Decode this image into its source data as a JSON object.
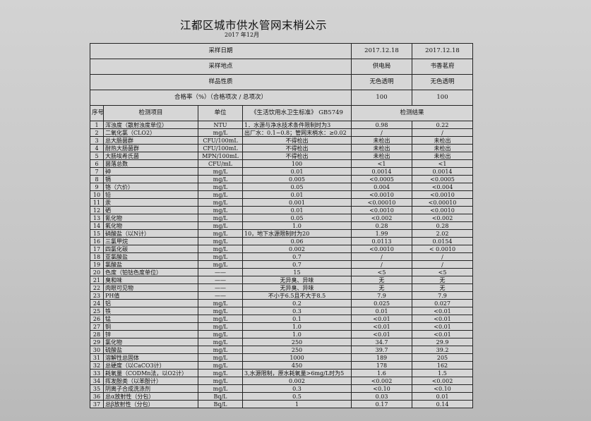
{
  "title": "江都区城市供水管网末梢公示",
  "subtitle": "2017 年12月",
  "header_rows": [
    {
      "label": "采样日期",
      "v1": "2017.12.18",
      "v2": "2017.12.18"
    },
    {
      "label": "采样地点",
      "v1": "供电局",
      "v2": "书香茗府"
    },
    {
      "label": "样品性质",
      "v1": "无色透明",
      "v2": "无色透明"
    },
    {
      "label": "合格率（%）（合格项次 / 总项次）",
      "v1": "100",
      "v2": "100"
    }
  ],
  "columns": {
    "no": "序号",
    "item": "检测项目",
    "unit": "单位",
    "standard": "《生活饮用水卫生标准》 GB5749",
    "result": "检测结果"
  },
  "rows": [
    [
      "1",
      "浑浊度（散射浊度单位）",
      "NTU",
      "1．水源与净水技术条件限制时为3",
      "0.98",
      "0.22"
    ],
    [
      "2",
      "二氧化氯（CLO2）",
      "mg/L",
      "出厂水：0.1~0.8；管网末梢水：≥0.02",
      "/",
      "/"
    ],
    [
      "3",
      "总大肠菌群",
      "CFU/100mL",
      "不得检出",
      "未检出",
      "未检出"
    ],
    [
      "4",
      "耐热大肠菌群",
      "CFU/100mL",
      "不得检出",
      "未检出",
      "未检出"
    ],
    [
      "5",
      "大肠埃希氏菌",
      "MPN/100mL",
      "不得检出",
      "未检出",
      "未检出"
    ],
    [
      "6",
      "菌落总数",
      "CFU/mL",
      "100",
      "<1",
      "<1"
    ],
    [
      "7",
      "砷",
      "mg/L",
      "0.01",
      "0.0014",
      "0.0014"
    ],
    [
      "8",
      "镉",
      "mg/L",
      "0.005",
      "<0.0005",
      "<0.0005"
    ],
    [
      "9",
      "铬（六价）",
      "mg/L",
      "0.05",
      "0.004",
      "<0.004"
    ],
    [
      "10",
      "铅",
      "mg/L",
      "0.01",
      "<0.0010",
      "<0.0010"
    ],
    [
      "11",
      "汞",
      "mg/L",
      "0.001",
      "<0.00010",
      "<0.00010"
    ],
    [
      "12",
      "硒",
      "mg/L",
      "0.01",
      "<0.0010",
      "<0.0010"
    ],
    [
      "13",
      "氰化物",
      "mg/L",
      "0.05",
      "<0.002",
      "<0.002"
    ],
    [
      "14",
      "氟化物",
      "mg/L",
      "1.0",
      "0.28",
      "0.28"
    ],
    [
      "15",
      "硝酸盐（以N计）",
      "mg/L",
      "10，地下水源限制时为20",
      "1.99",
      "2.02"
    ],
    [
      "16",
      "三氯甲烷",
      "mg/L",
      "0.06",
      "0.0113",
      "0.0154"
    ],
    [
      "17",
      "四氯化碳",
      "mg/L",
      "0.002",
      "<0.0010",
      "< 0.0010"
    ],
    [
      "18",
      "亚氯酸盐",
      "mg/L",
      "0.7",
      "/",
      "/"
    ],
    [
      "19",
      "氯酸盐",
      "mg/L",
      "0.7",
      "/",
      "/"
    ],
    [
      "20",
      "色度（铂钴色度单位）",
      "——",
      "15",
      "<5",
      "<5"
    ],
    [
      "21",
      "臭和味",
      "——",
      "无异臭、异味",
      "无",
      "无"
    ],
    [
      "22",
      "肉眼可见物",
      "——",
      "无异臭、异味",
      "无",
      "无"
    ],
    [
      "23",
      "PH值",
      "——",
      "不小于6.5且不大于8.5",
      "7.9",
      "7.9"
    ],
    [
      "24",
      "铝",
      "mg/L",
      "0.2",
      "0.025",
      "0.027"
    ],
    [
      "25",
      "铁",
      "mg/L",
      "0.3",
      "0.01",
      "<0.01"
    ],
    [
      "26",
      "锰",
      "mg/L",
      "0.1",
      "<0.01",
      "<0.01"
    ],
    [
      "27",
      "铜",
      "mg/L",
      "1.0",
      "<0.01",
      "<0.01"
    ],
    [
      "28",
      "锌",
      "mg/L",
      "1.0",
      "<0.01",
      "<0.01"
    ],
    [
      "29",
      "氯化物",
      "mg/L",
      "250",
      "34.7",
      "29.9"
    ],
    [
      "30",
      "硫酸盐",
      "mg/L",
      "250",
      "39.7",
      "39.2"
    ],
    [
      "31",
      "溶解性总固体",
      "mg/L",
      "1000",
      "189",
      "205"
    ],
    [
      "32",
      "总硬度（以CaCO3计）",
      "mg/L",
      "450",
      "178",
      "162"
    ],
    [
      "33",
      "耗氧量（CODMn法，以O2计）",
      "mg/L",
      "3,水源限制，原水耗氧量>6mg/L时为5",
      "1.6",
      "1.5"
    ],
    [
      "34",
      "挥发酚类（以苯酚计）",
      "mg/L",
      "0.002",
      "<0.002",
      "<0.002"
    ],
    [
      "35",
      "阴离子合成洗涤剂",
      "mg/L",
      "0.3",
      "<0.10",
      "<0.10"
    ],
    [
      "36",
      "总α放射性（分包）",
      "Bq/L",
      "0.5",
      "0.03",
      "0.01"
    ],
    [
      "37",
      "总β放射性（分包）",
      "Bq/L",
      "1",
      "0.17",
      "0.14"
    ]
  ]
}
